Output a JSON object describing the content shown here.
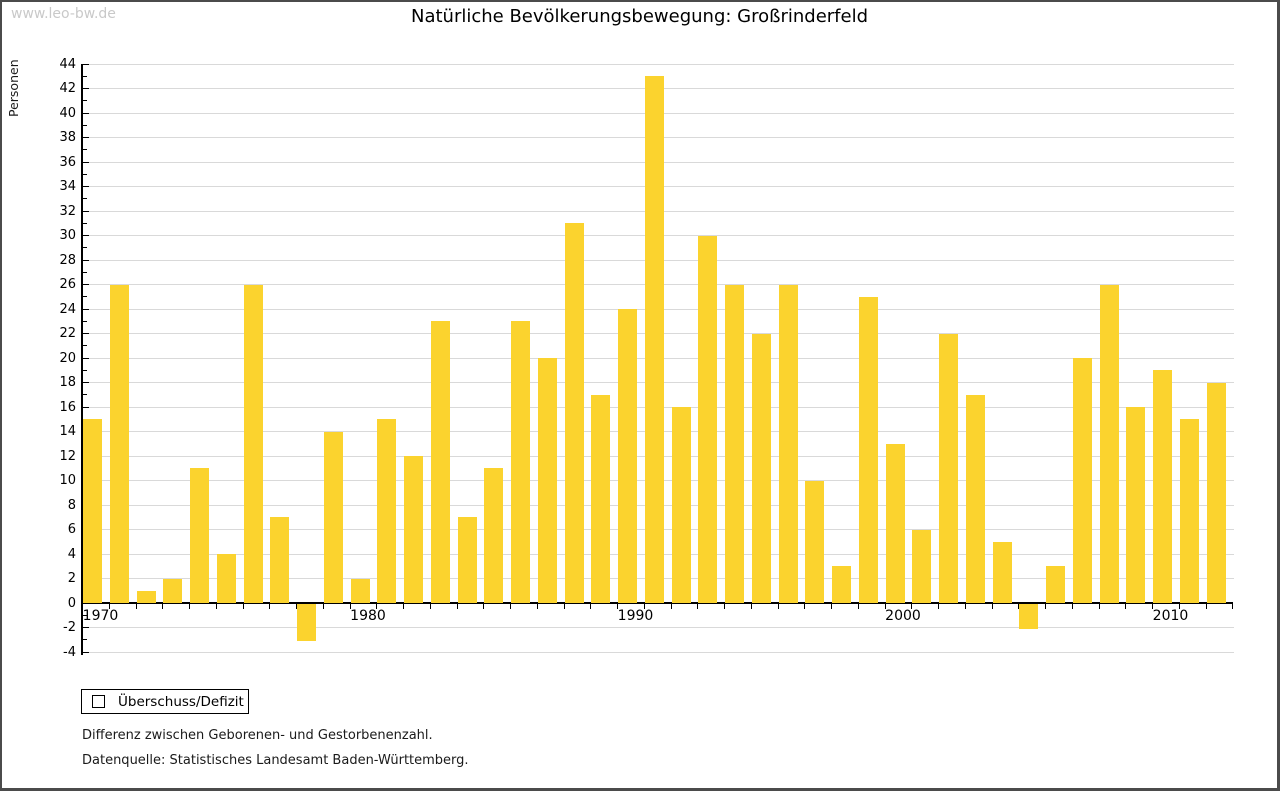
{
  "watermark": "www.leo-bw.de",
  "title": "Natürliche Bevölkerungsbewegung: Großrinderfeld",
  "legend": {
    "label": "Überschuss/Defizit"
  },
  "notes": [
    "Differenz zwischen Geborenen- und Gestorbenenzahl.",
    "Datenquelle: Statistisches Landesamt Baden-Württemberg."
  ],
  "colors": {
    "bar": "#fbd32e",
    "grid": "#d9d9d9",
    "axis": "#000000",
    "watermark": "#c9c9c9",
    "frame": "#4b4b4b"
  },
  "chart_data": {
    "type": "bar",
    "title": "Natürliche Bevölkerungsbewegung: Großrinderfeld",
    "xlabel": "",
    "ylabel": "Personen",
    "series_name": "Überschuss/Defizit",
    "x": [
      1970,
      1971,
      1972,
      1973,
      1974,
      1975,
      1976,
      1977,
      1978,
      1979,
      1980,
      1981,
      1982,
      1983,
      1984,
      1985,
      1986,
      1987,
      1988,
      1989,
      1990,
      1991,
      1992,
      1993,
      1994,
      1995,
      1996,
      1997,
      1998,
      1999,
      2000,
      2001,
      2002,
      2003,
      2004,
      2005,
      2006,
      2007,
      2008,
      2009,
      2010,
      2011,
      2012
    ],
    "values": [
      15,
      26,
      1,
      2,
      11,
      4,
      26,
      7,
      -3,
      14,
      2,
      15,
      12,
      23,
      7,
      11,
      23,
      20,
      31,
      17,
      24,
      43,
      16,
      30,
      26,
      22,
      26,
      10,
      3,
      25,
      13,
      6,
      22,
      17,
      5,
      -2,
      3,
      20,
      26,
      16,
      19,
      15,
      18
    ],
    "ylim": [
      -4,
      44
    ],
    "ytick_step": 2,
    "yticks_minor_step": 1,
    "xticks_labeled": [
      1970,
      1980,
      1990,
      2000,
      2010
    ],
    "grid": "horizontal",
    "legend_position": "bottom-left"
  }
}
